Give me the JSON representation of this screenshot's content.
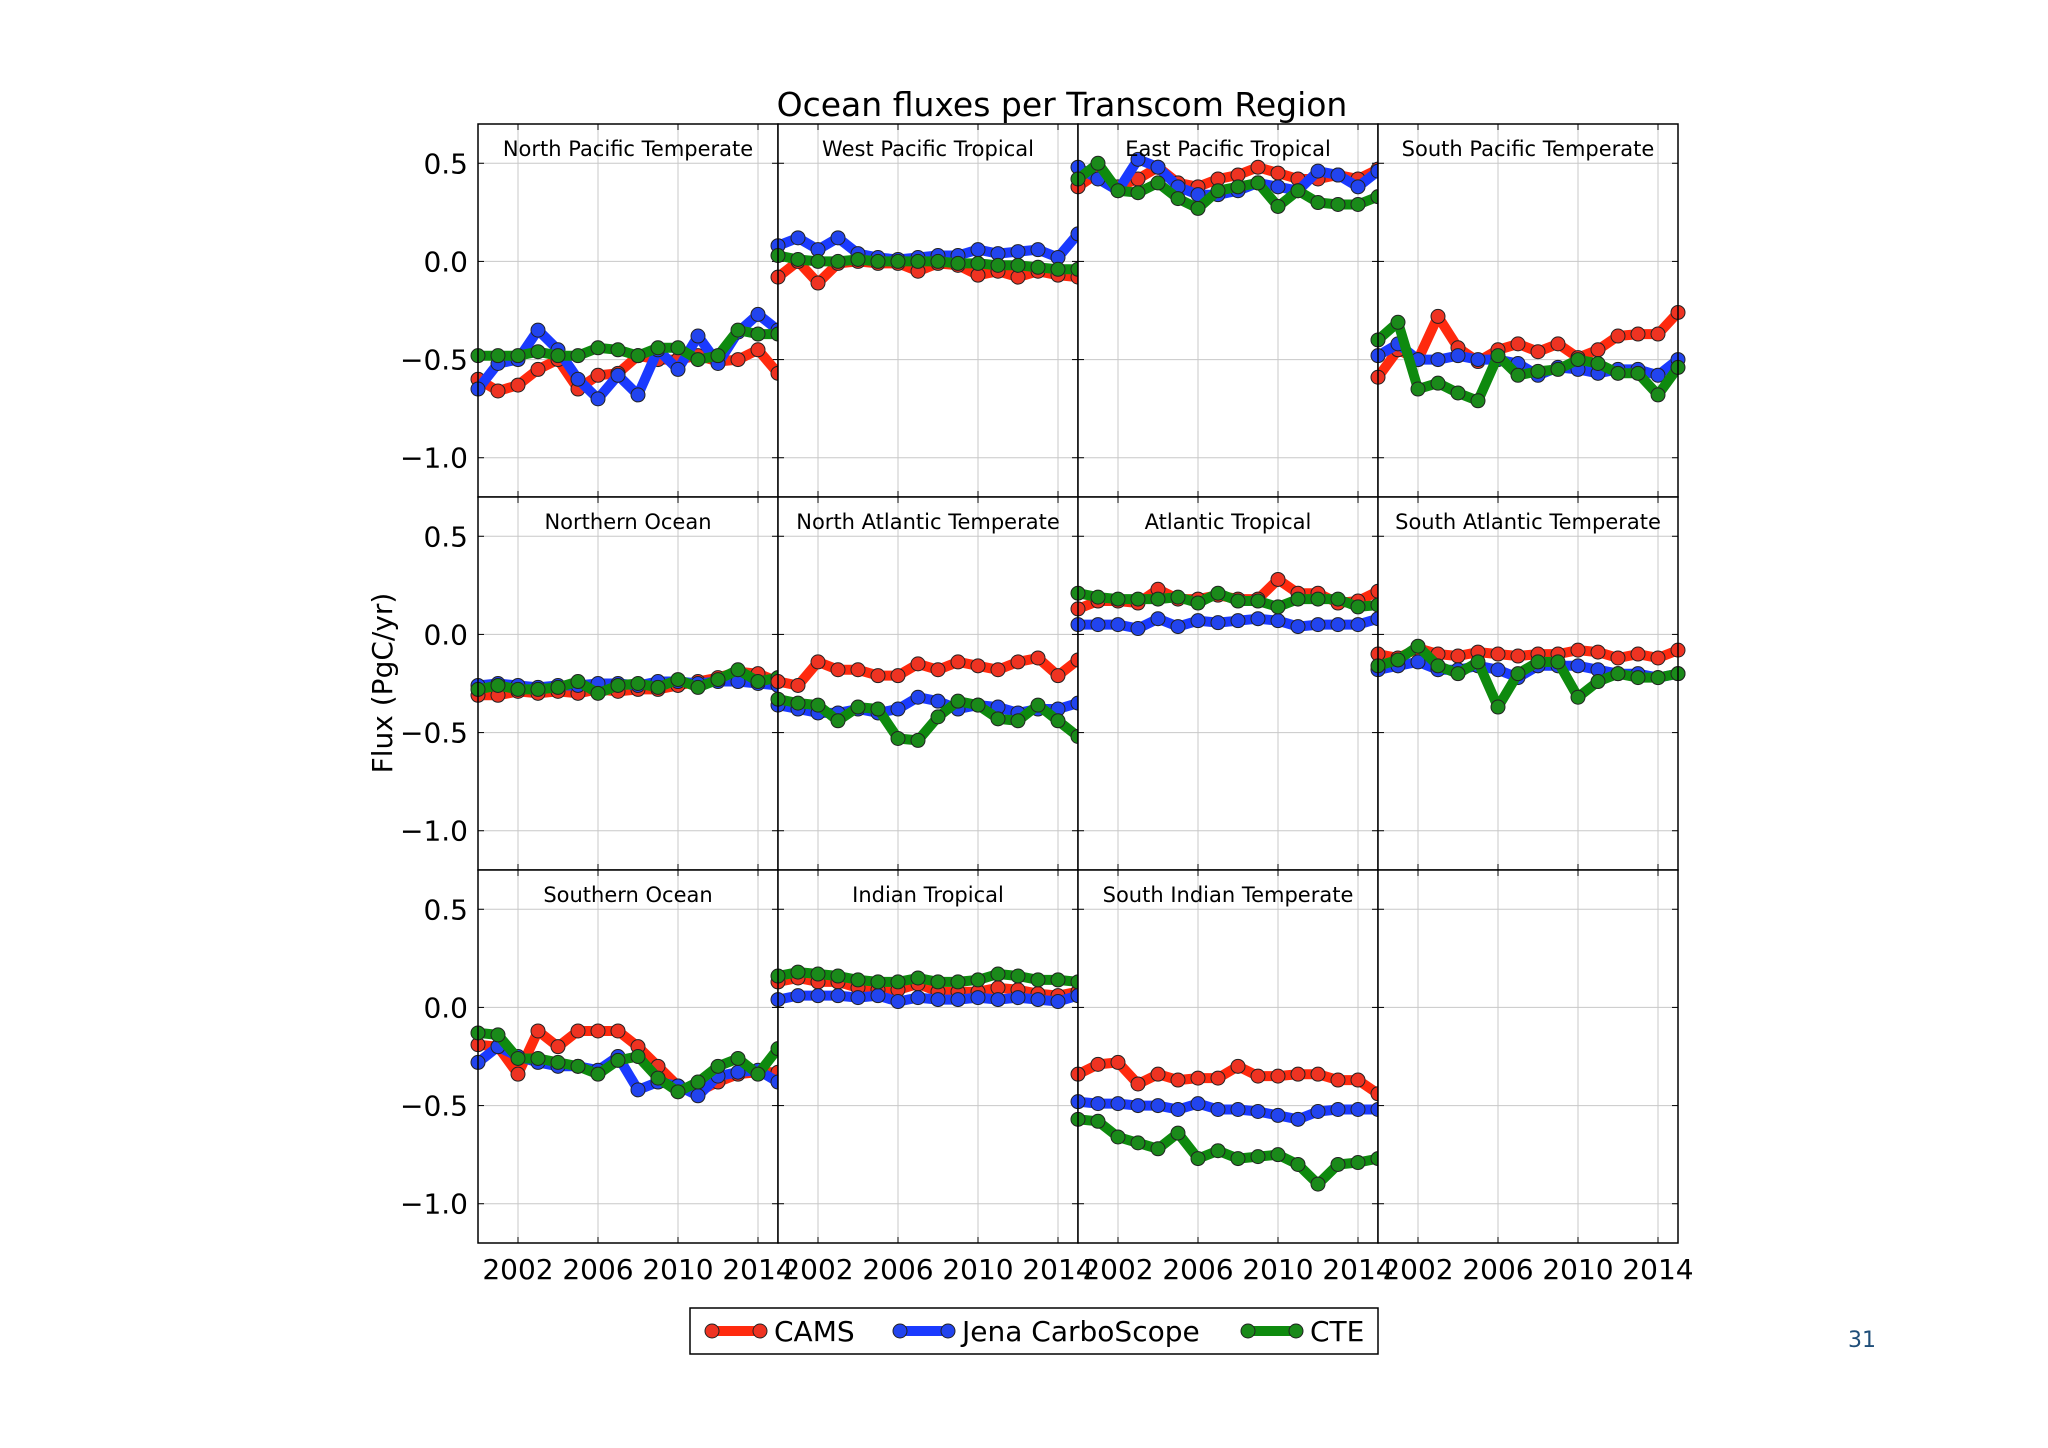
{
  "page": {
    "number": "31"
  },
  "chart_data": {
    "type": "line",
    "title": "Ocean fluxes per Transcom Region",
    "ylabel": "Flux (PgC/yr)",
    "xlabel": "",
    "ylim": [
      -1.2,
      0.7
    ],
    "xlim": [
      2000,
      2015
    ],
    "yticks": [
      0.5,
      0.0,
      -0.5,
      -1.0
    ],
    "ytick_labels": [
      "0.5",
      "0.0",
      "−0.5",
      "−1.0"
    ],
    "xticks": [
      2002,
      2006,
      2010,
      2014
    ],
    "xtick_labels": [
      "2002",
      "2006",
      "2010",
      "2014"
    ],
    "grid": true,
    "layout": {
      "rows": 3,
      "cols": 4
    },
    "x": [
      2000,
      2001,
      2002,
      2003,
      2004,
      2005,
      2006,
      2007,
      2008,
      2009,
      2010,
      2011,
      2012,
      2013,
      2014,
      2015
    ],
    "series_styles": [
      {
        "name": "CAMS",
        "color": "#ff2a0e",
        "marker_color": "#ee3322"
      },
      {
        "name": "Jena CarboScope",
        "color": "#1a3aff",
        "marker_color": "#2244ee"
      },
      {
        "name": "CTE",
        "color": "#0e8a0e",
        "marker_color": "#1a8a1a"
      }
    ],
    "legend": {
      "position": "bottom-center",
      "entries": [
        "CAMS",
        "Jena CarboScope",
        "CTE"
      ]
    },
    "panels": [
      {
        "title": "North Pacific Temperate",
        "series": [
          {
            "name": "CAMS",
            "values": [
              -0.6,
              -0.66,
              -0.63,
              -0.55,
              -0.5,
              -0.65,
              -0.58,
              -0.57,
              -0.48,
              -0.5,
              -0.5,
              -0.48,
              -0.51,
              -0.5,
              -0.45,
              -0.57
            ]
          },
          {
            "name": "Jena CarboScope",
            "values": [
              -0.65,
              -0.52,
              -0.5,
              -0.35,
              -0.45,
              -0.6,
              -0.7,
              -0.58,
              -0.68,
              -0.45,
              -0.55,
              -0.38,
              -0.52,
              -0.36,
              -0.27,
              -0.35
            ]
          },
          {
            "name": "CTE",
            "values": [
              -0.48,
              -0.48,
              -0.48,
              -0.46,
              -0.48,
              -0.48,
              -0.44,
              -0.45,
              -0.48,
              -0.44,
              -0.44,
              -0.5,
              -0.48,
              -0.35,
              -0.37,
              -0.37
            ]
          }
        ]
      },
      {
        "title": "West Pacific Tropical",
        "series": [
          {
            "name": "CAMS",
            "values": [
              -0.08,
              0.0,
              -0.11,
              -0.01,
              0.0,
              -0.01,
              -0.01,
              -0.05,
              -0.01,
              -0.02,
              -0.07,
              -0.05,
              -0.08,
              -0.05,
              -0.07,
              -0.08
            ]
          },
          {
            "name": "Jena CarboScope",
            "values": [
              0.08,
              0.12,
              0.06,
              0.12,
              0.04,
              0.02,
              0.01,
              0.02,
              0.03,
              0.03,
              0.06,
              0.04,
              0.05,
              0.06,
              0.02,
              0.14
            ]
          },
          {
            "name": "CTE",
            "values": [
              0.03,
              0.01,
              0.0,
              0.0,
              0.01,
              0.0,
              0.0,
              0.0,
              0.0,
              -0.01,
              -0.01,
              -0.02,
              -0.02,
              -0.03,
              -0.04,
              -0.04
            ]
          }
        ]
      },
      {
        "title": "East Pacific Tropical",
        "series": [
          {
            "name": "CAMS",
            "values": [
              0.38,
              0.45,
              0.38,
              0.42,
              0.48,
              0.4,
              0.38,
              0.42,
              0.44,
              0.48,
              0.45,
              0.42,
              0.42,
              0.44,
              0.42,
              0.47
            ]
          },
          {
            "name": "Jena CarboScope",
            "values": [
              0.48,
              0.42,
              0.36,
              0.52,
              0.48,
              0.38,
              0.34,
              0.34,
              0.36,
              0.4,
              0.38,
              0.36,
              0.46,
              0.44,
              0.38,
              0.46
            ]
          },
          {
            "name": "CTE",
            "values": [
              0.42,
              0.5,
              0.36,
              0.35,
              0.4,
              0.32,
              0.27,
              0.36,
              0.38,
              0.4,
              0.28,
              0.36,
              0.3,
              0.29,
              0.29,
              0.33
            ]
          }
        ]
      },
      {
        "title": "South Pacific Temperate",
        "series": [
          {
            "name": "CAMS",
            "values": [
              -0.59,
              -0.45,
              -0.5,
              -0.28,
              -0.44,
              -0.51,
              -0.45,
              -0.42,
              -0.46,
              -0.42,
              -0.49,
              -0.45,
              -0.38,
              -0.37,
              -0.37,
              -0.26
            ]
          },
          {
            "name": "Jena CarboScope",
            "values": [
              -0.48,
              -0.42,
              -0.5,
              -0.5,
              -0.48,
              -0.5,
              -0.5,
              -0.52,
              -0.58,
              -0.54,
              -0.55,
              -0.57,
              -0.55,
              -0.55,
              -0.58,
              -0.5
            ]
          },
          {
            "name": "CTE",
            "values": [
              -0.4,
              -0.31,
              -0.65,
              -0.62,
              -0.67,
              -0.71,
              -0.48,
              -0.58,
              -0.56,
              -0.55,
              -0.5,
              -0.52,
              -0.57,
              -0.57,
              -0.68,
              -0.54
            ]
          }
        ]
      },
      {
        "title": "Northern Ocean",
        "series": [
          {
            "name": "CAMS",
            "values": [
              -0.31,
              -0.31,
              -0.29,
              -0.3,
              -0.29,
              -0.3,
              -0.28,
              -0.29,
              -0.28,
              -0.28,
              -0.26,
              -0.24,
              -0.22,
              -0.19,
              -0.2,
              -0.24
            ]
          },
          {
            "name": "Jena CarboScope",
            "values": [
              -0.26,
              -0.25,
              -0.26,
              -0.27,
              -0.26,
              -0.26,
              -0.25,
              -0.25,
              -0.26,
              -0.24,
              -0.24,
              -0.25,
              -0.24,
              -0.24,
              -0.25,
              -0.26
            ]
          },
          {
            "name": "CTE",
            "values": [
              -0.28,
              -0.26,
              -0.28,
              -0.28,
              -0.27,
              -0.24,
              -0.3,
              -0.26,
              -0.25,
              -0.27,
              -0.23,
              -0.27,
              -0.23,
              -0.18,
              -0.24,
              -0.22
            ]
          }
        ]
      },
      {
        "title": "North Atlantic Temperate",
        "series": [
          {
            "name": "CAMS",
            "values": [
              -0.24,
              -0.26,
              -0.14,
              -0.18,
              -0.18,
              -0.21,
              -0.21,
              -0.15,
              -0.18,
              -0.14,
              -0.16,
              -0.18,
              -0.14,
              -0.12,
              -0.21,
              -0.13
            ]
          },
          {
            "name": "Jena CarboScope",
            "values": [
              -0.36,
              -0.38,
              -0.4,
              -0.4,
              -0.38,
              -0.4,
              -0.38,
              -0.32,
              -0.34,
              -0.38,
              -0.36,
              -0.37,
              -0.4,
              -0.38,
              -0.38,
              -0.35
            ]
          },
          {
            "name": "CTE",
            "values": [
              -0.33,
              -0.35,
              -0.36,
              -0.44,
              -0.37,
              -0.38,
              -0.53,
              -0.54,
              -0.42,
              -0.34,
              -0.36,
              -0.43,
              -0.44,
              -0.36,
              -0.44,
              -0.52
            ]
          }
        ]
      },
      {
        "title": "Atlantic Tropical",
        "series": [
          {
            "name": "CAMS",
            "values": [
              0.13,
              0.17,
              0.17,
              0.16,
              0.23,
              0.18,
              0.18,
              0.2,
              0.18,
              0.18,
              0.28,
              0.21,
              0.21,
              0.16,
              0.17,
              0.22
            ]
          },
          {
            "name": "Jena CarboScope",
            "values": [
              0.05,
              0.05,
              0.05,
              0.03,
              0.08,
              0.04,
              0.07,
              0.06,
              0.07,
              0.08,
              0.07,
              0.04,
              0.05,
              0.05,
              0.05,
              0.08
            ]
          },
          {
            "name": "CTE",
            "values": [
              0.21,
              0.19,
              0.18,
              0.18,
              0.18,
              0.19,
              0.16,
              0.21,
              0.17,
              0.17,
              0.14,
              0.18,
              0.18,
              0.18,
              0.14,
              0.15
            ]
          }
        ]
      },
      {
        "title": "South Atlantic Temperate",
        "series": [
          {
            "name": "CAMS",
            "values": [
              -0.1,
              -0.12,
              -0.07,
              -0.1,
              -0.11,
              -0.09,
              -0.1,
              -0.11,
              -0.1,
              -0.1,
              -0.08,
              -0.09,
              -0.12,
              -0.1,
              -0.12,
              -0.08
            ]
          },
          {
            "name": "Jena CarboScope",
            "values": [
              -0.18,
              -0.16,
              -0.14,
              -0.18,
              -0.18,
              -0.16,
              -0.18,
              -0.22,
              -0.16,
              -0.16,
              -0.16,
              -0.18,
              -0.2,
              -0.2,
              -0.22,
              -0.2
            ]
          },
          {
            "name": "CTE",
            "values": [
              -0.16,
              -0.13,
              -0.06,
              -0.16,
              -0.2,
              -0.14,
              -0.37,
              -0.2,
              -0.14,
              -0.14,
              -0.32,
              -0.24,
              -0.2,
              -0.22,
              -0.22,
              -0.2
            ]
          }
        ]
      },
      {
        "title": "Southern Ocean",
        "series": [
          {
            "name": "CAMS",
            "values": [
              -0.19,
              -0.2,
              -0.34,
              -0.12,
              -0.2,
              -0.12,
              -0.12,
              -0.12,
              -0.2,
              -0.3,
              -0.4,
              -0.43,
              -0.38,
              -0.34,
              -0.33,
              -0.33
            ]
          },
          {
            "name": "Jena CarboScope",
            "values": [
              -0.28,
              -0.2,
              -0.25,
              -0.28,
              -0.3,
              -0.3,
              -0.32,
              -0.25,
              -0.42,
              -0.38,
              -0.4,
              -0.45,
              -0.35,
              -0.33,
              -0.32,
              -0.38
            ]
          },
          {
            "name": "CTE",
            "values": [
              -0.13,
              -0.14,
              -0.26,
              -0.26,
              -0.28,
              -0.3,
              -0.34,
              -0.27,
              -0.25,
              -0.36,
              -0.43,
              -0.38,
              -0.3,
              -0.26,
              -0.34,
              -0.21
            ]
          }
        ]
      },
      {
        "title": "Indian Tropical",
        "series": [
          {
            "name": "CAMS",
            "values": [
              0.13,
              0.15,
              0.13,
              0.13,
              0.1,
              0.09,
              0.09,
              0.12,
              0.08,
              0.08,
              0.08,
              0.1,
              0.09,
              0.07,
              0.06,
              0.08
            ]
          },
          {
            "name": "Jena CarboScope",
            "values": [
              0.04,
              0.06,
              0.06,
              0.06,
              0.05,
              0.06,
              0.03,
              0.05,
              0.04,
              0.04,
              0.05,
              0.04,
              0.05,
              0.04,
              0.03,
              0.06
            ]
          },
          {
            "name": "CTE",
            "values": [
              0.16,
              0.18,
              0.17,
              0.16,
              0.14,
              0.13,
              0.13,
              0.15,
              0.13,
              0.13,
              0.14,
              0.17,
              0.16,
              0.14,
              0.14,
              0.13
            ]
          }
        ]
      },
      {
        "title": "South Indian Temperate",
        "series": [
          {
            "name": "CAMS",
            "values": [
              -0.34,
              -0.29,
              -0.28,
              -0.39,
              -0.34,
              -0.37,
              -0.36,
              -0.36,
              -0.3,
              -0.35,
              -0.35,
              -0.34,
              -0.34,
              -0.37,
              -0.37,
              -0.44
            ]
          },
          {
            "name": "Jena CarboScope",
            "values": [
              -0.48,
              -0.49,
              -0.49,
              -0.5,
              -0.5,
              -0.52,
              -0.49,
              -0.52,
              -0.52,
              -0.53,
              -0.55,
              -0.57,
              -0.53,
              -0.52,
              -0.52,
              -0.52
            ]
          },
          {
            "name": "CTE",
            "values": [
              -0.57,
              -0.58,
              -0.66,
              -0.69,
              -0.72,
              -0.64,
              -0.77,
              -0.73,
              -0.77,
              -0.76,
              -0.75,
              -0.8,
              -0.9,
              -0.8,
              -0.79,
              -0.77
            ]
          }
        ]
      },
      {
        "title": "",
        "series": []
      }
    ]
  }
}
